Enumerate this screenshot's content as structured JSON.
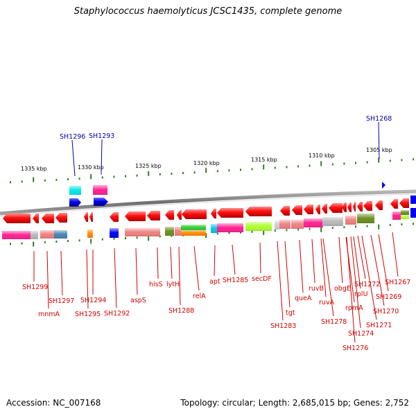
{
  "title": "Staphylococcus haemolyticus JCSC1435, complete genome",
  "accession": "Accession: NC_007168",
  "summary": "Topology: circular; Length: 2,685,015 bp; Genes: 2,752",
  "colors": {
    "backbone": "#8c8c8c",
    "tick": "#2e7d1e",
    "forward_label": "#0000a8",
    "reverse_label": "#d20000",
    "gene_arrow": "#ff0000",
    "forward_arrow": "#0000ee"
  },
  "scale": {
    "kbp_labels": [
      "1335 kbp",
      "1330 kbp",
      "1325 kbp",
      "1320 kbp",
      "1315 kbp",
      "1310 kbp",
      "1305 kbp"
    ]
  },
  "genes": {
    "forward": [
      "SH1296",
      "SH1293",
      "SH1268"
    ],
    "reverse": [
      "SH1299",
      "mnmA",
      "SH1297",
      "SH1295",
      "SH1294",
      "SH1292",
      "aspS",
      "hisS",
      "lytH",
      "SH1288",
      "relA",
      "apt",
      "SH1285",
      "secDF",
      "SH1283",
      "tgt",
      "queA",
      "ruvB",
      "ruvA",
      "SH1278",
      "obgE",
      "rpmA",
      "SH1276",
      "rplU",
      "SH1274",
      "SH1272",
      "SH1271",
      "SH1270",
      "SH1269",
      "SH1267"
    ]
  }
}
